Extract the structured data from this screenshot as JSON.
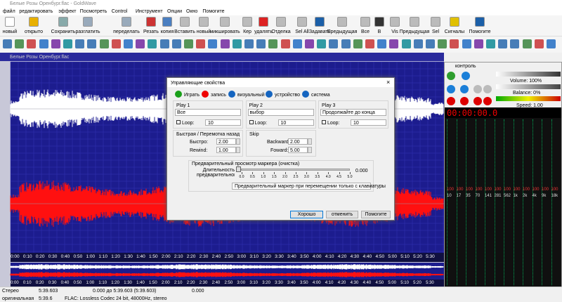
{
  "window_title": "Белые Розы Оренбург.flac - GoldWave",
  "menu": [
    "файл",
    "редактировать",
    "эффект",
    "Посмотреть",
    "Control",
    "Инструмент",
    "Опции",
    "Окно",
    "Помогите"
  ],
  "toolbar": [
    "новый",
    "открыто",
    "Сохранить",
    "разглатить",
    "переделать",
    "Резать",
    "копия",
    "Вставить",
    "новый",
    "микшировать",
    "Кер",
    "удалять",
    "Отделка",
    "Sel All",
    "Задавать",
    "Предыдущая",
    "Все",
    "В",
    "Vis",
    "Предыдущая",
    "Sel",
    "Сигналы",
    "Помогите"
  ],
  "document": {
    "title": "Белые Розы Оренбург.flac",
    "time_ruler": [
      "0:00",
      "0:10",
      "0:20",
      "0:30",
      "0:40",
      "0:50",
      "1:00",
      "1:10",
      "1:20",
      "1:30",
      "1:40",
      "1:50",
      "2:00",
      "2:10",
      "2:20",
      "2:30",
      "2:40",
      "2:50",
      "3:00",
      "3:10",
      "3:20",
      "3:30",
      "3:40",
      "3:50",
      "4:00",
      "4:10",
      "4:20",
      "4:30",
      "4:40",
      "4:50",
      "5:00",
      "5:10",
      "5:20",
      "5:30"
    ]
  },
  "control": {
    "title": "контроль",
    "volume": "Volume: 100%",
    "balance": "Balance: 0%",
    "speed": "Speed: 1.00",
    "time": "00:00:00.0",
    "level_labels": [
      "100",
      "100",
      "100",
      "100",
      "100",
      "100",
      "100",
      "100",
      "100",
      "100",
      "100",
      "100"
    ],
    "freq_labels": [
      "10",
      "17",
      "35",
      "70",
      "141",
      "281",
      "562",
      "1k",
      "2k",
      "4k",
      "9k",
      "18k"
    ]
  },
  "dialog": {
    "title": "Управляющие свойства",
    "tabs": [
      "Играть",
      "запись",
      "визуальный",
      "устройство",
      "система"
    ],
    "play": [
      {
        "title": "Play 1",
        "mode": "Все",
        "loop_label": "Loop:",
        "loop": "10"
      },
      {
        "title": "Play 2",
        "mode": "выбор",
        "loop_label": "Loop:",
        "loop": "10"
      },
      {
        "title": "Play 3",
        "mode": "Продолжайте до конца",
        "loop_label": "Loop:",
        "loop": "10"
      }
    ],
    "fast": {
      "title": "Быстрая / Перемотка назад",
      "fast_label": "Быстро:",
      "fast": "2.00",
      "rewind_label": "Rewind:",
      "rewind": "1.00"
    },
    "skip": {
      "title": "Skip",
      "backward_label": "Backward:",
      "backward": "2.00",
      "forward_label": "Foward:",
      "forward": "5.00"
    },
    "preview": {
      "title": "Предварительный просмотр маркера (очистка)",
      "duration_label": "Длительность предварительного просмотр",
      "ticks": [
        "0.0",
        "0.5",
        "1.0",
        "1.5",
        "2.0",
        "2.5",
        "3.0",
        "3.5",
        "4.0",
        "4.5",
        "5.0"
      ],
      "value": "0.000",
      "mode": "Предварительный маркер при перемещении только с клавиатуры"
    },
    "buttons": [
      "Хорошо",
      "отменить",
      "Помогите"
    ]
  },
  "status": {
    "channels": "Стерео",
    "length": "5:39.603",
    "selection": "0.000 до 5:39.603 (5:39.603)",
    "position": "0.000",
    "state": "оригинальная",
    "duration": "5:39.6",
    "format": "FLAC: Lossless Codec 24 bit, 48000Hz, stereo"
  }
}
